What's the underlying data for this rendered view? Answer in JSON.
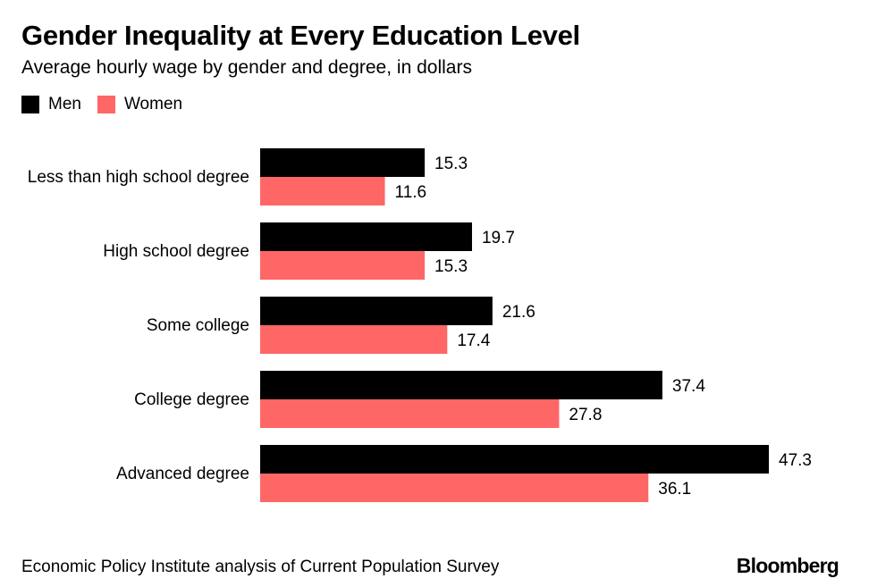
{
  "colors": {
    "men": "#000000",
    "women": "#ff6666",
    "text": "#000000",
    "background": "#ffffff"
  },
  "chart_data": {
    "type": "bar",
    "orientation": "horizontal",
    "title": "Gender Inequality at Every Education Level",
    "subtitle": "Average hourly wage by gender and degree, in dollars",
    "categories": [
      "Less than high school degree",
      "High school degree",
      "Some college",
      "College degree",
      "Advanced degree"
    ],
    "series": [
      {
        "name": "Men",
        "values": [
          15.3,
          19.7,
          21.6,
          37.4,
          47.3
        ]
      },
      {
        "name": "Women",
        "values": [
          11.6,
          15.3,
          17.4,
          27.8,
          36.1
        ]
      }
    ],
    "xlim": [
      0,
      47.3
    ],
    "grid": false,
    "legend": "top-left",
    "xlabel": "",
    "ylabel": ""
  },
  "footer": {
    "source": "Economic Policy Institute analysis of Current Population Survey",
    "brand": "Bloomberg"
  }
}
